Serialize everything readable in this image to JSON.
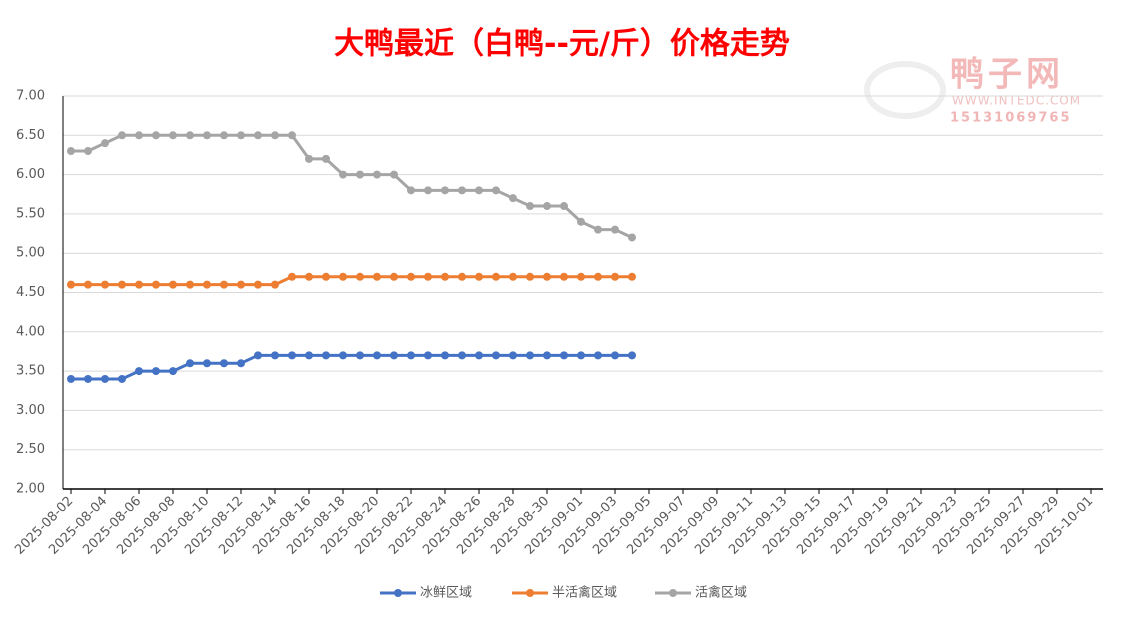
{
  "chart_data": {
    "type": "line",
    "title": "大鸭最近（白鸭--元/斤）价格走势",
    "watermark": {
      "name": "鸭子网",
      "site": "WWW.INTEDC.COM",
      "phone": "15131069765"
    },
    "categories": [
      "2025-08-02",
      null,
      "2025-08-04",
      null,
      "2025-08-06",
      null,
      "2025-08-08",
      null,
      "2025-08-10",
      null,
      "2025-08-12",
      null,
      "2025-08-14",
      null,
      "2025-08-16",
      null,
      "2025-08-18",
      null,
      "2025-08-20",
      null,
      "2025-08-22",
      null,
      "2025-08-24",
      null,
      "2025-08-26",
      null,
      "2025-08-28",
      null,
      "2025-08-30",
      null,
      "2025-09-01",
      null,
      "2025-09-03",
      null,
      "2025-09-05",
      null,
      "2025-09-07",
      null,
      "2025-09-09",
      null,
      "2025-09-11",
      null,
      "2025-09-13",
      null,
      "2025-09-15",
      null,
      "2025-09-17",
      null,
      "2025-09-19",
      null,
      "2025-09-21",
      null,
      "2025-09-23",
      null,
      "2025-09-25",
      null,
      "2025-09-27",
      null,
      "2025-09-29",
      null,
      "2025-10-01"
    ],
    "series": [
      {
        "name": "冰鲜区域",
        "color": "#4472c4",
        "values": [
          3.4,
          3.4,
          3.4,
          3.4,
          3.5,
          3.5,
          3.5,
          3.6,
          3.6,
          3.6,
          3.6,
          3.7,
          3.7,
          3.7,
          3.7,
          3.7,
          3.7,
          3.7,
          3.7,
          3.7,
          3.7,
          3.7,
          3.7,
          3.7,
          3.7,
          3.7,
          3.7,
          3.7,
          3.7,
          3.7,
          3.7,
          3.7,
          3.7,
          3.7,
          null,
          null,
          null,
          null,
          null,
          null,
          null,
          null,
          null,
          null,
          null,
          null,
          null,
          null,
          null,
          null,
          null,
          null,
          null,
          null,
          null,
          null,
          null,
          null,
          null,
          null,
          null
        ]
      },
      {
        "name": "半活禽区域",
        "color": "#ed7d31",
        "values": [
          4.6,
          4.6,
          4.6,
          4.6,
          4.6,
          4.6,
          4.6,
          4.6,
          4.6,
          4.6,
          4.6,
          4.6,
          4.6,
          4.7,
          4.7,
          4.7,
          4.7,
          4.7,
          4.7,
          4.7,
          4.7,
          4.7,
          4.7,
          4.7,
          4.7,
          4.7,
          4.7,
          4.7,
          4.7,
          4.7,
          4.7,
          4.7,
          4.7,
          4.7,
          null,
          null,
          null,
          null,
          null,
          null,
          null,
          null,
          null,
          null,
          null,
          null,
          null,
          null,
          null,
          null,
          null,
          null,
          null,
          null,
          null,
          null,
          null,
          null,
          null,
          null,
          null
        ]
      },
      {
        "name": "活禽区域",
        "color": "#a5a5a5",
        "values": [
          6.3,
          6.3,
          6.4,
          6.5,
          6.5,
          6.5,
          6.5,
          6.5,
          6.5,
          6.5,
          6.5,
          6.5,
          6.5,
          6.5,
          6.2,
          6.2,
          6.0,
          6.0,
          6.0,
          6.0,
          5.8,
          5.8,
          5.8,
          5.8,
          5.8,
          5.8,
          5.7,
          5.6,
          5.6,
          5.6,
          5.4,
          5.3,
          5.3,
          5.2,
          null,
          null,
          null,
          null,
          null,
          null,
          null,
          null,
          null,
          null,
          null,
          null,
          null,
          null,
          null,
          null,
          null,
          null,
          null,
          null,
          null,
          null,
          null,
          null,
          null,
          null,
          null
        ]
      }
    ],
    "ylim": [
      2,
      7
    ],
    "yticks": [
      {
        "value": 2,
        "label": "2.00"
      },
      {
        "value": 2.5,
        "label": "2.50"
      },
      {
        "value": 3,
        "label": "3.00"
      },
      {
        "value": 3.5,
        "label": "3.50"
      },
      {
        "value": 4,
        "label": "4.00"
      },
      {
        "value": 4.5,
        "label": "4.50"
      },
      {
        "value": 5,
        "label": "5.00"
      },
      {
        "value": 5.5,
        "label": "5.50"
      },
      {
        "value": 6,
        "label": "6.00"
      },
      {
        "value": 6.5,
        "label": "6.50"
      },
      {
        "value": 7,
        "label": "7.00"
      }
    ],
    "grid": true,
    "legend": "bottom"
  }
}
